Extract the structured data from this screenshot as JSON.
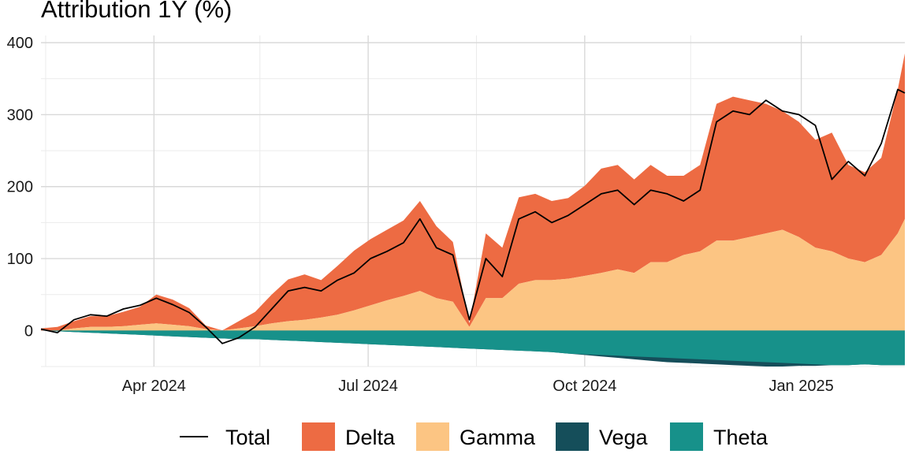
{
  "chart_data": {
    "type": "area",
    "title": "Attribution 1Y (%)",
    "xlabel": "",
    "ylabel": "",
    "x_range": [
      "2024-02-13",
      "2025-02-14"
    ],
    "ylim": [
      -50,
      410
    ],
    "y_ticks": [
      0,
      100,
      200,
      300,
      400
    ],
    "x_ticks": [
      {
        "date": "2024-04-01",
        "label": "Apr 2024"
      },
      {
        "date": "2024-07-01",
        "label": "Jul 2024"
      },
      {
        "date": "2024-10-01",
        "label": "Oct 2024"
      },
      {
        "date": "2025-01-01",
        "label": "Jan 2025"
      }
    ],
    "x_minor_ticks": [
      "2024-02-15",
      "2024-05-16",
      "2024-08-16",
      "2024-11-15"
    ],
    "grid": true,
    "legend_position": "bottom",
    "stacking": "positive components stacked above zero (Gamma then Delta); negative components stacked below zero (Vega then Theta); Total drawn as a line",
    "x": [
      "2024-02-13",
      "2024-02-20",
      "2024-02-27",
      "2024-03-05",
      "2024-03-12",
      "2024-03-19",
      "2024-03-26",
      "2024-04-02",
      "2024-04-09",
      "2024-04-16",
      "2024-04-23",
      "2024-04-30",
      "2024-05-07",
      "2024-05-14",
      "2024-05-21",
      "2024-05-28",
      "2024-06-04",
      "2024-06-11",
      "2024-06-18",
      "2024-06-25",
      "2024-07-02",
      "2024-07-09",
      "2024-07-16",
      "2024-07-23",
      "2024-07-30",
      "2024-08-06",
      "2024-08-13",
      "2024-08-20",
      "2024-08-27",
      "2024-09-03",
      "2024-09-10",
      "2024-09-17",
      "2024-09-24",
      "2024-10-01",
      "2024-10-08",
      "2024-10-15",
      "2024-10-22",
      "2024-10-29",
      "2024-11-05",
      "2024-11-12",
      "2024-11-19",
      "2024-11-26",
      "2024-12-03",
      "2024-12-10",
      "2024-12-17",
      "2024-12-24",
      "2024-12-31",
      "2025-01-07",
      "2025-01-14",
      "2025-01-21",
      "2025-01-28",
      "2025-02-04",
      "2025-02-11",
      "2025-02-14"
    ],
    "series": [
      {
        "name": "Total",
        "kind": "line",
        "color": "#000000",
        "values": [
          2,
          -3,
          15,
          22,
          20,
          30,
          35,
          45,
          36,
          25,
          5,
          -18,
          -10,
          5,
          30,
          55,
          60,
          55,
          70,
          80,
          100,
          110,
          122,
          155,
          115,
          105,
          15,
          100,
          75,
          155,
          165,
          150,
          160,
          175,
          190,
          195,
          175,
          195,
          190,
          180,
          195,
          290,
          305,
          300,
          320,
          305,
          300,
          285,
          210,
          235,
          215,
          260,
          335,
          330
        ]
      },
      {
        "name": "Delta",
        "kind": "area",
        "color": "#ED6B43",
        "values": [
          3,
          5,
          10,
          15,
          15,
          20,
          25,
          40,
          35,
          25,
          5,
          0,
          10,
          20,
          40,
          58,
          63,
          52,
          68,
          83,
          92,
          98,
          105,
          125,
          100,
          83,
          5,
          90,
          70,
          120,
          120,
          110,
          112,
          125,
          145,
          145,
          130,
          135,
          120,
          110,
          120,
          190,
          200,
          190,
          180,
          165,
          160,
          150,
          165,
          130,
          125,
          135,
          200,
          230
        ]
      },
      {
        "name": "Gamma",
        "kind": "area",
        "color": "#FCC583",
        "values": [
          0,
          0,
          3,
          5,
          5,
          6,
          8,
          10,
          8,
          6,
          2,
          0,
          3,
          6,
          10,
          13,
          15,
          18,
          22,
          28,
          35,
          42,
          48,
          55,
          45,
          40,
          5,
          45,
          45,
          65,
          70,
          70,
          72,
          76,
          80,
          85,
          80,
          95,
          95,
          105,
          110,
          125,
          125,
          130,
          135,
          140,
          130,
          115,
          110,
          100,
          95,
          105,
          135,
          155
        ]
      },
      {
        "name": "Vega",
        "kind": "area",
        "color": "#154E5A",
        "values": [
          0,
          -1,
          -2,
          -3,
          -4,
          -5,
          -6,
          -7,
          -8,
          -9,
          -10,
          -11,
          -12,
          -12,
          -13,
          -14,
          -15,
          -16,
          -17,
          -18,
          -19,
          -20,
          -21,
          -22,
          -23,
          -24,
          -25,
          -26,
          -27,
          -28,
          -29,
          -30,
          -32,
          -34,
          -36,
          -38,
          -40,
          -42,
          -44,
          -45,
          -46,
          -47,
          -48,
          -49,
          -50,
          -50,
          -49,
          -49,
          -48,
          -48,
          -47,
          -48,
          -48,
          -48
        ]
      },
      {
        "name": "Theta",
        "kind": "area",
        "color": "#17918A",
        "values": [
          0,
          0,
          0,
          0,
          0,
          0,
          0,
          0,
          0,
          0,
          0,
          0,
          0,
          0,
          0,
          0,
          0,
          0,
          0,
          0,
          0,
          0,
          0,
          0,
          0,
          0,
          0,
          0,
          0,
          0,
          0,
          0,
          0,
          0,
          0,
          0,
          0,
          0,
          0,
          0,
          0,
          0,
          0,
          0,
          0,
          0,
          0,
          0,
          0,
          0,
          0,
          0,
          0,
          0
        ]
      }
    ],
    "theta_bottom": [
      0,
      -1,
      -2,
      -3,
      -4,
      -5,
      -6,
      -7,
      -8,
      -9,
      -10,
      -11,
      -12,
      -13,
      -14,
      -15,
      -16,
      -17,
      -18,
      -19,
      -20,
      -21,
      -22,
      -23,
      -24,
      -25,
      -26,
      -27,
      -28,
      -29,
      -30,
      -31,
      -32,
      -33,
      -34,
      -35,
      -36,
      -37,
      -38,
      -39,
      -40,
      -41,
      -42,
      -43,
      -44,
      -45,
      -46,
      -47,
      -48,
      -49,
      -50,
      -50,
      -50,
      -50
    ]
  },
  "legend": [
    "Total",
    "Delta",
    "Gamma",
    "Vega",
    "Theta"
  ]
}
